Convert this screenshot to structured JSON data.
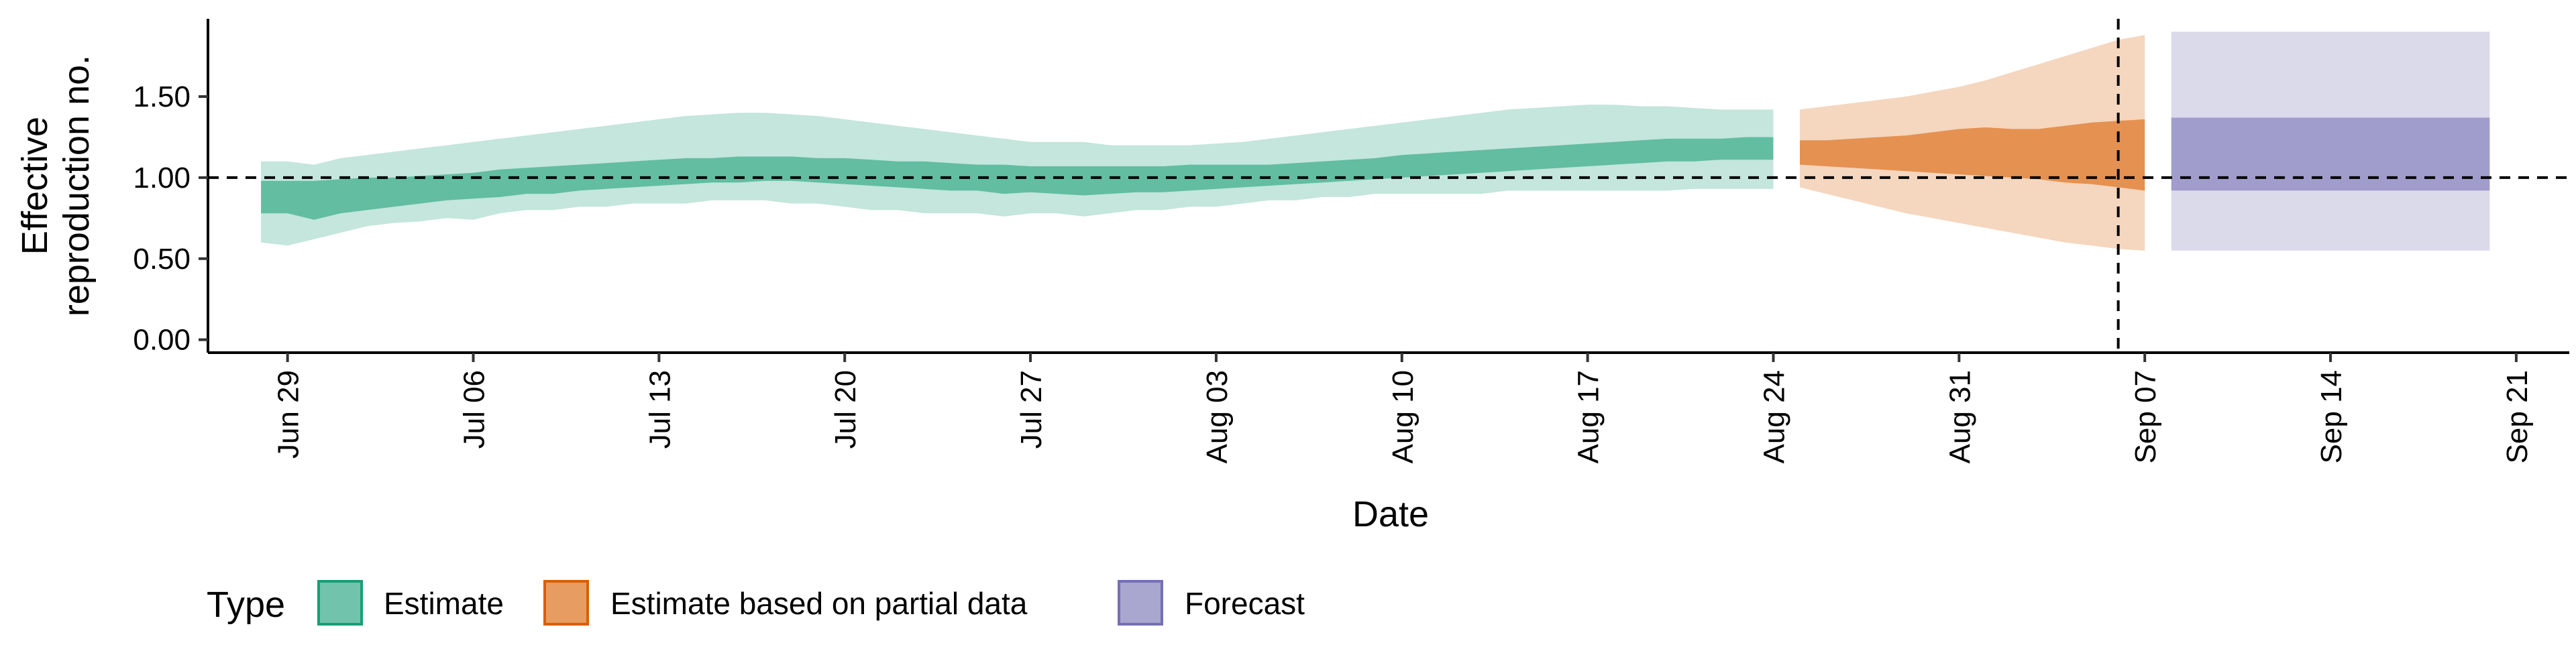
{
  "chart_data": {
    "type": "area",
    "title": "",
    "xlabel": "Date",
    "ylabel": "Effective\nreproduction no.",
    "x_ticks": [
      "Jun 29",
      "Jul 06",
      "Jul 13",
      "Jul 20",
      "Jul 27",
      "Aug 03",
      "Aug 10",
      "Aug 17",
      "Aug 24",
      "Aug 31",
      "Sep 07",
      "Sep 14",
      "Sep 21"
    ],
    "y_ticks": [
      "0.00",
      "0.50",
      "1.00",
      "1.50"
    ],
    "xlim": [
      "2020-06-26",
      "2020-09-23"
    ],
    "ylim": [
      -0.08,
      1.98
    ],
    "reference_line_y": 1.0,
    "reference_date": "2020-09-06",
    "legend": {
      "title": "Type",
      "position": "bottom-left",
      "items": [
        {
          "label": "Estimate",
          "color": "#1b9e77"
        },
        {
          "label": "Estimate based on partial data",
          "color": "#d95f02"
        },
        {
          "label": "Forecast",
          "color": "#7570b3"
        }
      ]
    },
    "series": [
      {
        "name": "Estimate",
        "color": "#1b9e77",
        "start_date": "2020-06-28",
        "outer_lower": [
          0.6,
          0.58,
          0.62,
          0.66,
          0.7,
          0.72,
          0.73,
          0.75,
          0.74,
          0.78,
          0.8,
          0.8,
          0.82,
          0.82,
          0.84,
          0.84,
          0.84,
          0.86,
          0.86,
          0.86,
          0.84,
          0.84,
          0.82,
          0.8,
          0.8,
          0.78,
          0.78,
          0.78,
          0.76,
          0.78,
          0.78,
          0.76,
          0.78,
          0.8,
          0.8,
          0.82,
          0.82,
          0.84,
          0.86,
          0.86,
          0.88,
          0.88,
          0.9,
          0.9,
          0.9,
          0.9,
          0.9,
          0.92,
          0.92,
          0.92,
          0.92,
          0.92,
          0.92,
          0.92,
          0.93,
          0.93,
          0.93,
          0.93
        ],
        "inner_lower": [
          0.78,
          0.78,
          0.74,
          0.78,
          0.8,
          0.82,
          0.84,
          0.86,
          0.87,
          0.88,
          0.9,
          0.9,
          0.92,
          0.93,
          0.94,
          0.95,
          0.96,
          0.97,
          0.97,
          0.98,
          0.98,
          0.97,
          0.96,
          0.95,
          0.94,
          0.93,
          0.92,
          0.92,
          0.9,
          0.91,
          0.9,
          0.89,
          0.9,
          0.91,
          0.91,
          0.92,
          0.93,
          0.94,
          0.95,
          0.96,
          0.97,
          0.98,
          0.99,
          1.0,
          1.01,
          1.02,
          1.03,
          1.04,
          1.05,
          1.06,
          1.07,
          1.08,
          1.09,
          1.1,
          1.1,
          1.11,
          1.11,
          1.11
        ],
        "inner_upper": [
          0.98,
          0.98,
          0.98,
          0.99,
          1.0,
          1.0,
          1.01,
          1.02,
          1.03,
          1.05,
          1.06,
          1.07,
          1.08,
          1.09,
          1.1,
          1.11,
          1.12,
          1.12,
          1.13,
          1.13,
          1.13,
          1.12,
          1.12,
          1.11,
          1.1,
          1.1,
          1.09,
          1.08,
          1.08,
          1.07,
          1.07,
          1.07,
          1.07,
          1.07,
          1.07,
          1.08,
          1.08,
          1.08,
          1.08,
          1.09,
          1.1,
          1.11,
          1.12,
          1.14,
          1.15,
          1.16,
          1.17,
          1.18,
          1.19,
          1.2,
          1.21,
          1.22,
          1.23,
          1.24,
          1.24,
          1.24,
          1.25,
          1.25
        ],
        "outer_upper": [
          1.1,
          1.1,
          1.08,
          1.12,
          1.14,
          1.16,
          1.18,
          1.2,
          1.22,
          1.24,
          1.26,
          1.28,
          1.3,
          1.32,
          1.34,
          1.36,
          1.38,
          1.39,
          1.4,
          1.4,
          1.39,
          1.38,
          1.36,
          1.34,
          1.32,
          1.3,
          1.28,
          1.26,
          1.24,
          1.22,
          1.22,
          1.22,
          1.2,
          1.2,
          1.2,
          1.2,
          1.21,
          1.22,
          1.24,
          1.26,
          1.28,
          1.3,
          1.32,
          1.34,
          1.36,
          1.38,
          1.4,
          1.42,
          1.43,
          1.44,
          1.45,
          1.45,
          1.44,
          1.44,
          1.43,
          1.42,
          1.42,
          1.42
        ]
      },
      {
        "name": "Estimate based on partial data",
        "color": "#d95f02",
        "start_date": "2020-08-25",
        "outer_lower": [
          0.94,
          0.9,
          0.86,
          0.82,
          0.78,
          0.75,
          0.72,
          0.69,
          0.66,
          0.63,
          0.6,
          0.58,
          0.56,
          0.55
        ],
        "inner_lower": [
          1.08,
          1.07,
          1.06,
          1.05,
          1.04,
          1.03,
          1.02,
          1.01,
          1.0,
          0.99,
          0.97,
          0.96,
          0.94,
          0.92
        ],
        "inner_upper": [
          1.23,
          1.23,
          1.24,
          1.25,
          1.26,
          1.28,
          1.3,
          1.31,
          1.3,
          1.3,
          1.32,
          1.34,
          1.35,
          1.36
        ],
        "outer_upper": [
          1.42,
          1.44,
          1.46,
          1.48,
          1.5,
          1.53,
          1.56,
          1.6,
          1.65,
          1.7,
          1.75,
          1.8,
          1.85,
          1.88
        ]
      },
      {
        "name": "Forecast",
        "color": "#7570b3",
        "start_date": "2020-09-08",
        "end_date": "2020-09-20",
        "outer_lower": 0.55,
        "inner_lower": 0.92,
        "inner_upper": 1.37,
        "outer_upper": 1.9
      }
    ]
  }
}
